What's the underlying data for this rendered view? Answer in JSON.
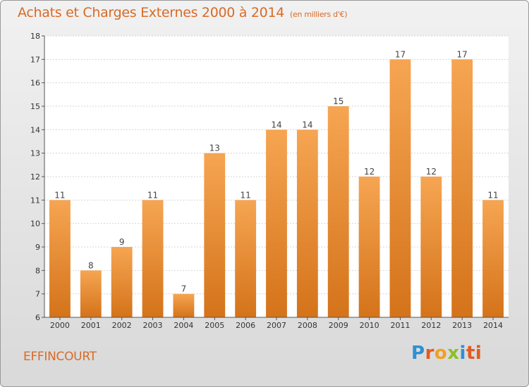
{
  "header": {
    "title": "Achats et Charges Externes 2000 à 2014",
    "unit": "(en milliers d'€)"
  },
  "footer": {
    "place": "EFFINCOURT",
    "logo_letters": [
      "P",
      "r",
      "o",
      "x",
      "i",
      "ti"
    ]
  },
  "colors": {
    "bar_light": "#f6a552",
    "bar_dark": "#d4731a",
    "title": "#d96a26"
  },
  "chart_data": {
    "type": "bar",
    "title": "Achats et Charges Externes 2000 à 2014",
    "subtitle": "(en milliers d'€)",
    "categories": [
      "2000",
      "2001",
      "2002",
      "2003",
      "2004",
      "2005",
      "2006",
      "2007",
      "2008",
      "2009",
      "2010",
      "2011",
      "2012",
      "2013",
      "2014"
    ],
    "values": [
      11,
      8,
      9,
      11,
      7,
      13,
      11,
      14,
      14,
      15,
      12,
      17,
      12,
      17,
      11
    ],
    "ylim": [
      6,
      18
    ],
    "yticks": [
      6,
      7,
      8,
      9,
      10,
      11,
      12,
      13,
      14,
      15,
      16,
      17,
      18
    ],
    "grid": true,
    "legend": "none"
  }
}
